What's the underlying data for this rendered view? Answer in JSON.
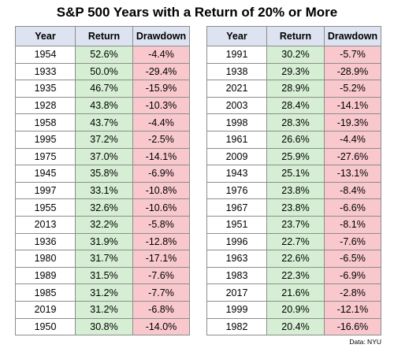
{
  "title": "S&P 500 Years with a Return of 20% or More",
  "source": "Data: NYU",
  "chart_data": [
    {
      "type": "table",
      "columns": [
        "Year",
        "Return",
        "Drawdown"
      ],
      "rows": [
        [
          "1954",
          "52.6%",
          "-4.4%"
        ],
        [
          "1933",
          "50.0%",
          "-29.4%"
        ],
        [
          "1935",
          "46.7%",
          "-15.9%"
        ],
        [
          "1928",
          "43.8%",
          "-10.3%"
        ],
        [
          "1958",
          "43.7%",
          "-4.4%"
        ],
        [
          "1995",
          "37.2%",
          "-2.5%"
        ],
        [
          "1975",
          "37.0%",
          "-14.1%"
        ],
        [
          "1945",
          "35.8%",
          "-6.9%"
        ],
        [
          "1997",
          "33.1%",
          "-10.8%"
        ],
        [
          "1955",
          "32.6%",
          "-10.6%"
        ],
        [
          "2013",
          "32.2%",
          "-5.8%"
        ],
        [
          "1936",
          "31.9%",
          "-12.8%"
        ],
        [
          "1980",
          "31.7%",
          "-17.1%"
        ],
        [
          "1989",
          "31.5%",
          "-7.6%"
        ],
        [
          "1985",
          "31.2%",
          "-7.7%"
        ],
        [
          "2019",
          "31.2%",
          "-6.8%"
        ],
        [
          "1950",
          "30.8%",
          "-14.0%"
        ]
      ]
    },
    {
      "type": "table",
      "columns": [
        "Year",
        "Return",
        "Drawdown"
      ],
      "rows": [
        [
          "1991",
          "30.2%",
          "-5.7%"
        ],
        [
          "1938",
          "29.3%",
          "-28.9%"
        ],
        [
          "2021",
          "28.9%",
          "-5.2%"
        ],
        [
          "2003",
          "28.4%",
          "-14.1%"
        ],
        [
          "1998",
          "28.3%",
          "-19.3%"
        ],
        [
          "1961",
          "26.6%",
          "-4.4%"
        ],
        [
          "2009",
          "25.9%",
          "-27.6%"
        ],
        [
          "1943",
          "25.1%",
          "-13.1%"
        ],
        [
          "1976",
          "23.8%",
          "-8.4%"
        ],
        [
          "1967",
          "23.8%",
          "-6.6%"
        ],
        [
          "1951",
          "23.7%",
          "-8.1%"
        ],
        [
          "1996",
          "22.7%",
          "-7.6%"
        ],
        [
          "1963",
          "22.6%",
          "-6.5%"
        ],
        [
          "1983",
          "22.3%",
          "-6.9%"
        ],
        [
          "2017",
          "21.6%",
          "-2.8%"
        ],
        [
          "1999",
          "20.9%",
          "-12.1%"
        ],
        [
          "1982",
          "20.4%",
          "-16.6%"
        ]
      ]
    }
  ]
}
